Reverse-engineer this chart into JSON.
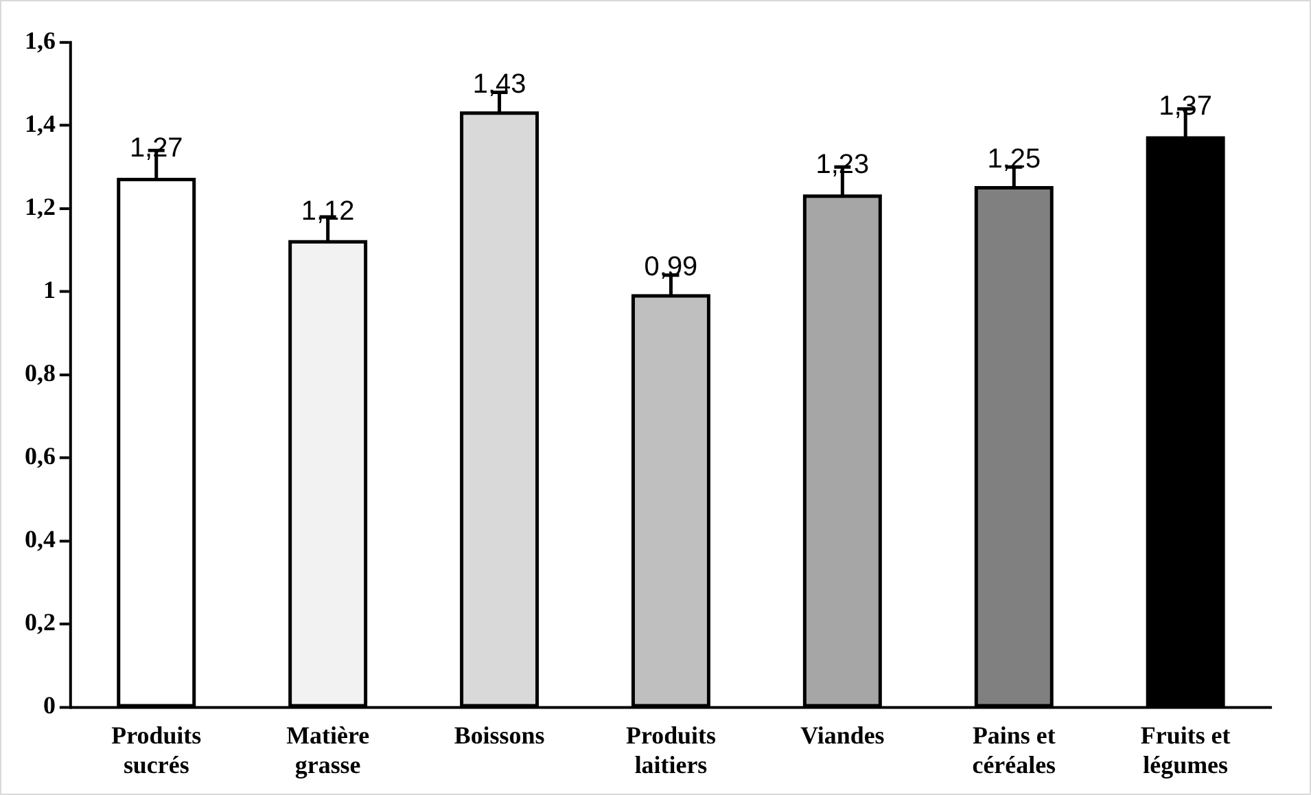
{
  "chart_data": {
    "type": "bar",
    "categories": [
      "Produits sucrés",
      "Matière grasse",
      "Boissons",
      "Produits laitiers",
      "Viandes",
      "Pains et céréales",
      "Fruits et légumes"
    ],
    "values": [
      1.27,
      1.12,
      1.43,
      0.99,
      1.23,
      1.25,
      1.37
    ],
    "colors": [
      "#ffffff",
      "#f2f2f2",
      "#d9d9d9",
      "#bfbfbf",
      "#a6a6a6",
      "#808080",
      "#000000"
    ],
    "errors": [
      [
        1.27,
        1.34
      ],
      [
        1.12,
        1.18
      ],
      [
        1.43,
        1.48
      ],
      [
        0.99,
        1.04
      ],
      [
        1.23,
        1.3
      ],
      [
        1.25,
        1.3
      ],
      [
        1.37,
        1.44
      ]
    ],
    "value_labels": [
      "1,27",
      "1,12",
      "1,43",
      "0,99",
      "1,23",
      "1,25",
      "1,37"
    ],
    "ylim": [
      0,
      1.6
    ],
    "yticks": [
      {
        "value": 0,
        "label": "0"
      },
      {
        "value": 0.2,
        "label": "0,2"
      },
      {
        "value": 0.4,
        "label": "0,4"
      },
      {
        "value": 0.6,
        "label": "0,6"
      },
      {
        "value": 0.8,
        "label": "0,8"
      },
      {
        "value": 1,
        "label": "1"
      },
      {
        "value": 1.2,
        "label": "1,2"
      },
      {
        "value": 1.4,
        "label": "1,4"
      },
      {
        "value": 1.6,
        "label": "1,6"
      }
    ],
    "grid": false,
    "legend": false
  }
}
